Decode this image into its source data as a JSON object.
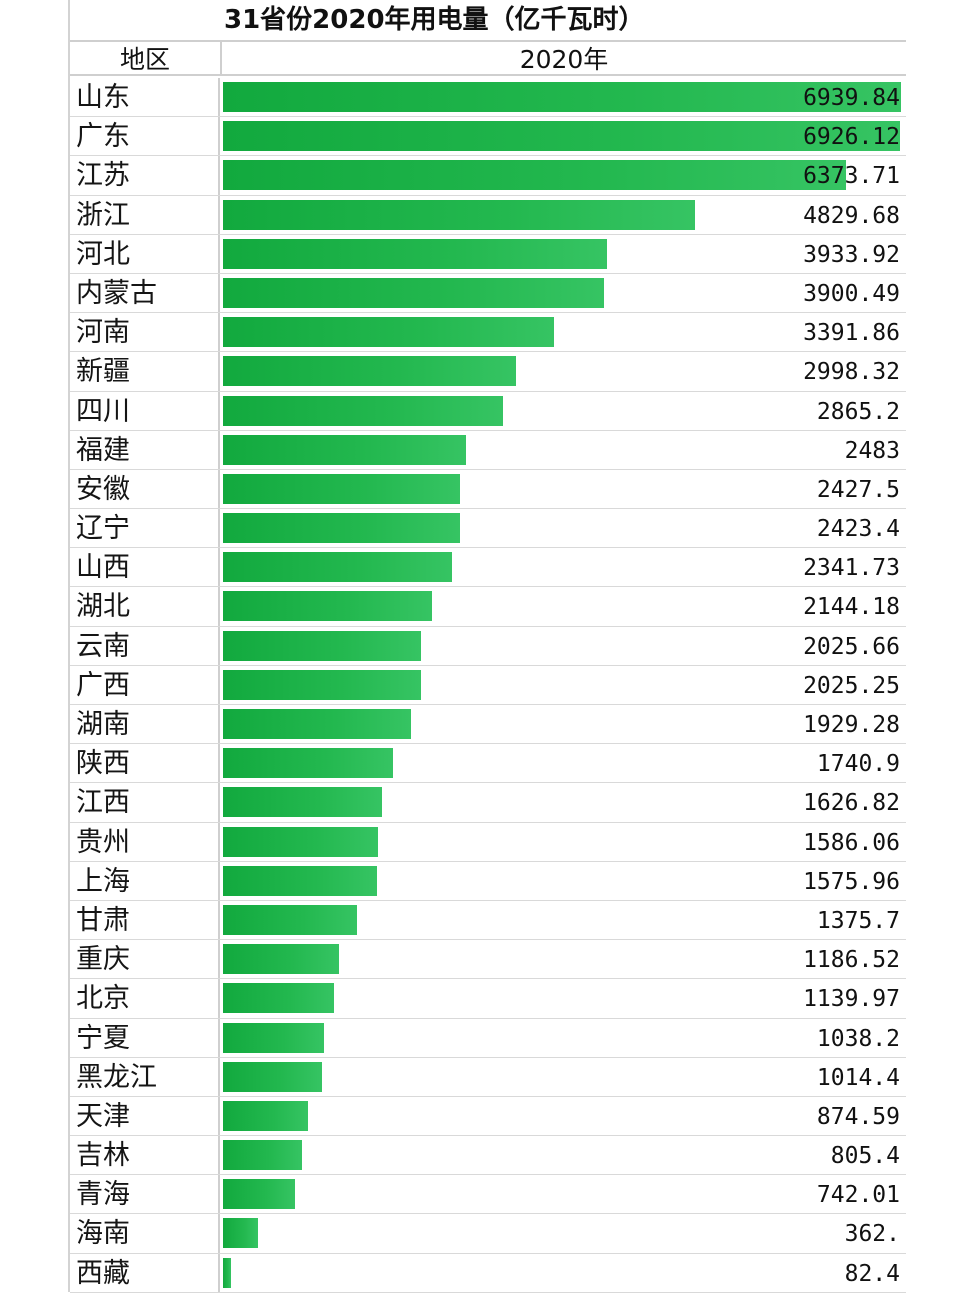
{
  "chart_data": {
    "type": "bar",
    "orientation": "horizontal",
    "title": "31省份2020年用电量（亿千瓦时）",
    "header": {
      "category_label": "地区",
      "series_label": "2020年"
    },
    "categories": [
      "山东",
      "广东",
      "江苏",
      "浙江",
      "河北",
      "内蒙古",
      "河南",
      "新疆",
      "四川",
      "福建",
      "安徽",
      "辽宁",
      "山西",
      "湖北",
      "云南",
      "广西",
      "湖南",
      "陕西",
      "江西",
      "贵州",
      "上海",
      "甘肃",
      "重庆",
      "北京",
      "宁夏",
      "黑龙江",
      "天津",
      "吉林",
      "青海",
      "海南",
      "西藏"
    ],
    "series": [
      {
        "name": "2020年",
        "values": [
          6939.84,
          6926.12,
          6373.71,
          4829.68,
          3933.92,
          3900.49,
          3391.86,
          2998.32,
          2865.2,
          2483,
          2427.5,
          2423.4,
          2341.73,
          2144.18,
          2025.66,
          2025.25,
          1929.28,
          1740.9,
          1626.82,
          1586.06,
          1575.96,
          1375.7,
          1186.52,
          1139.97,
          1038.2,
          1014.4,
          874.59,
          805.4,
          742.01,
          362.0,
          82.4
        ],
        "labels": [
          "6939.84",
          "6926.12",
          "6373.71",
          "4829.68",
          "3933.92",
          "3900.49",
          "3391.86",
          "2998.32",
          "2865.2",
          "2483",
          "2427.5",
          "2423.4",
          "2341.73",
          "2144.18",
          "2025.66",
          "2025.25",
          "1929.28",
          "1740.9",
          "1626.82",
          "1586.06",
          "1575.96",
          "1375.7",
          "1186.52",
          "1139.97",
          "1038.2",
          "1014.4",
          "874.59",
          "805.4",
          "742.01",
          "362.",
          "82.4"
        ]
      }
    ],
    "xlim": [
      0,
      6939.84
    ],
    "bar_color": "#1db14a",
    "grid": false,
    "legend": "none"
  }
}
